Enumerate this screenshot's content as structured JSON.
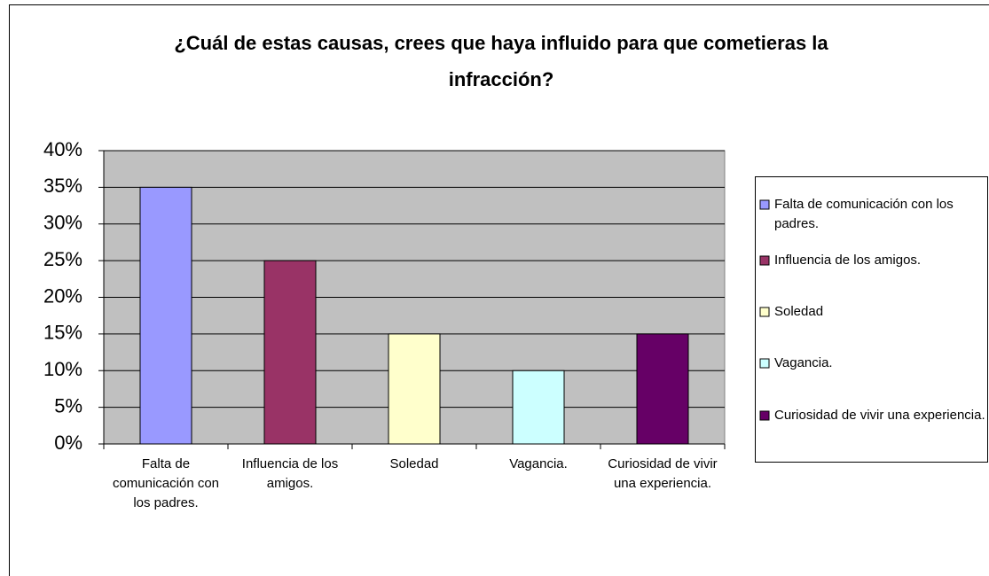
{
  "chart_data": {
    "type": "bar",
    "title": "¿Cuál de estas causas, crees que haya influido para que cometieras la infracción?",
    "categories": [
      "Falta de comunicación con los padres.",
      "Influencia de los amigos.",
      "Soledad",
      "Vagancia.",
      "Curiosidad de vivir una experiencia."
    ],
    "values": [
      35,
      25,
      15,
      10,
      15
    ],
    "colors": [
      "#9999ff",
      "#993366",
      "#ffffcc",
      "#ccffff",
      "#660066"
    ],
    "ylim": [
      0,
      40
    ],
    "yticks": [
      {
        "value": 0,
        "label": "0%"
      },
      {
        "value": 5,
        "label": "5%"
      },
      {
        "value": 10,
        "label": "10%"
      },
      {
        "value": 15,
        "label": "15%"
      },
      {
        "value": 20,
        "label": "20%"
      },
      {
        "value": 25,
        "label": "25%"
      },
      {
        "value": 30,
        "label": "30%"
      },
      {
        "value": 35,
        "label": "35%"
      },
      {
        "value": 40,
        "label": "40%"
      }
    ],
    "grid": true,
    "legend": "right"
  }
}
